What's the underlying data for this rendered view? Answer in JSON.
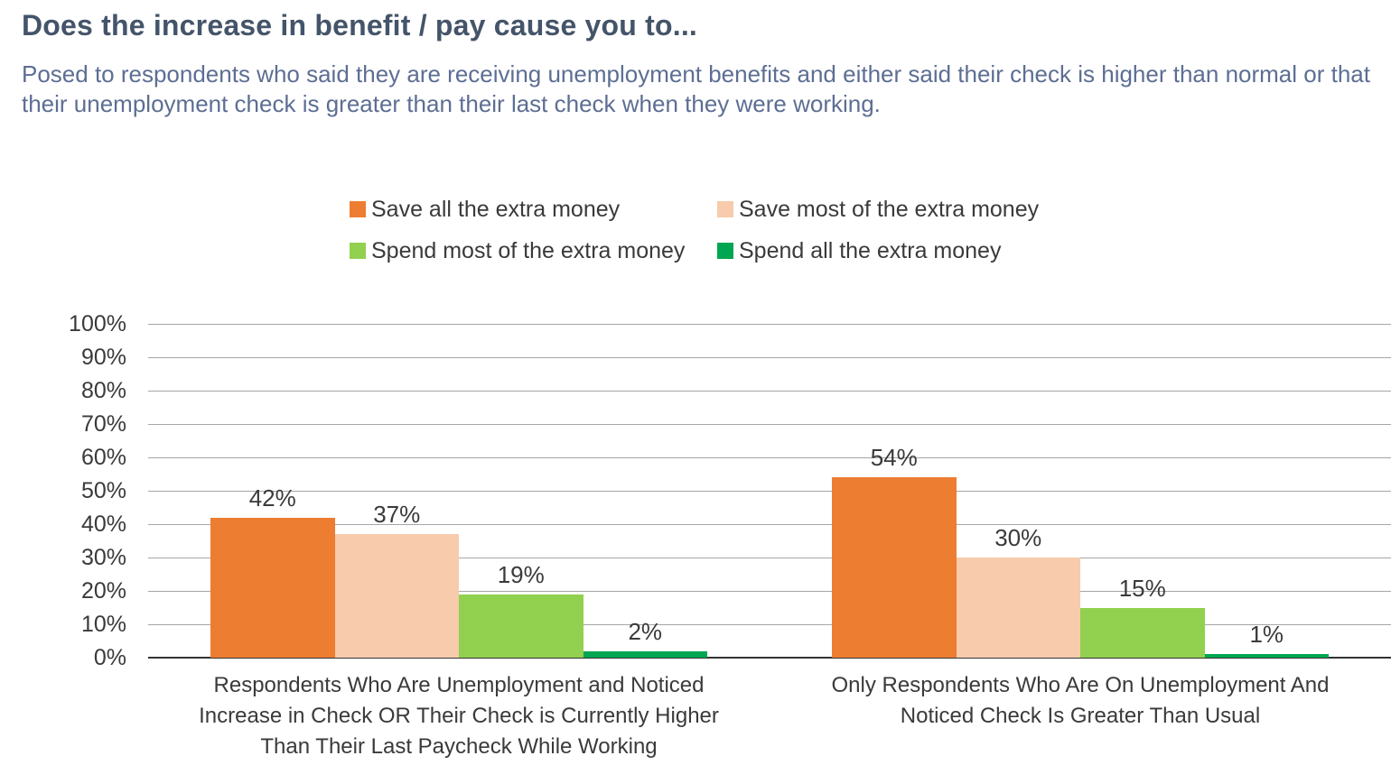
{
  "title": "Does the increase in benefit / pay cause you to...",
  "subtitle": "Posed to respondents who said they are receiving unemployment benefits and either said their check is higher than normal or that their unemployment check is greater than their last check when they were working.",
  "colors": {
    "background": "#ffffff",
    "title_text": "#44546A",
    "subtitle_text": "#5D6E93",
    "body_text": "#3A3A3A",
    "gridline": "#A6A6A6",
    "axis_line": "#333333"
  },
  "chart_data": {
    "type": "bar",
    "title": "Does the increase in benefit / pay cause you to...",
    "xlabel": "",
    "ylabel": "",
    "y_axis": {
      "min": 0,
      "max": 100,
      "step": 10,
      "tick_suffix": "%"
    },
    "grid": true,
    "legend_position": "top-center-two-columns",
    "categories": [
      {
        "label": "Respondents Who Are Unemployment and Noticed Increase in Check OR Their Check is Currently Higher Than Their Last Paycheck While Working",
        "lines": [
          "Respondents Who Are Unemployment and Noticed",
          "Increase in Check OR Their Check is Currently Higher",
          "Than Their Last Paycheck While Working"
        ]
      },
      {
        "label": "Only Respondents Who Are On Unemployment And Noticed Check Is Greater Than Usual",
        "lines": [
          "Only Respondents Who Are On Unemployment And",
          "Noticed Check Is Greater Than Usual"
        ]
      }
    ],
    "series": [
      {
        "name": "Save all the extra money",
        "color": "#ED7D31",
        "values": [
          42,
          54
        ],
        "data_labels": [
          "42%",
          "54%"
        ]
      },
      {
        "name": "Save most of the extra money",
        "color": "#F7CBAC",
        "values": [
          37,
          30
        ],
        "data_labels": [
          "37%",
          "30%"
        ]
      },
      {
        "name": "Spend most of the extra money",
        "color": "#92D050",
        "values": [
          19,
          15
        ],
        "data_labels": [
          "19%",
          "15%"
        ]
      },
      {
        "name": "Spend all the extra money",
        "color": "#00A651",
        "values": [
          2,
          1
        ],
        "data_labels": [
          "2%",
          "1%"
        ]
      }
    ]
  }
}
